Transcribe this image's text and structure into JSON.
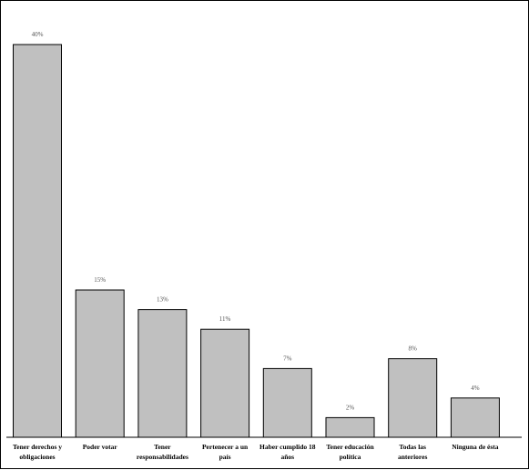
{
  "chart_data": {
    "type": "bar",
    "title": "",
    "xlabel": "",
    "ylabel": "",
    "categories": [
      [
        "Tener derechos y",
        "obligaciones"
      ],
      [
        "Poder votar"
      ],
      [
        "Tener",
        "responsabilidades"
      ],
      [
        "Pertenecer a un",
        "país"
      ],
      [
        "Haber cumplido 18",
        "años"
      ],
      [
        "Tener educación",
        "política"
      ],
      [
        "Todas las",
        "anteriores"
      ],
      [
        "Ninguna de ésta"
      ]
    ],
    "values": [
      40,
      15,
      13,
      11,
      7,
      2,
      8,
      4
    ],
    "value_labels": [
      "40%",
      "15%",
      "13%",
      "11%",
      "7%",
      "2%",
      "8%",
      "4%"
    ],
    "ylim": [
      0,
      40
    ],
    "grid": false,
    "legend": "none",
    "colors": {
      "bar_fill": "#c0c0c0",
      "bar_stroke": "#000000"
    }
  }
}
